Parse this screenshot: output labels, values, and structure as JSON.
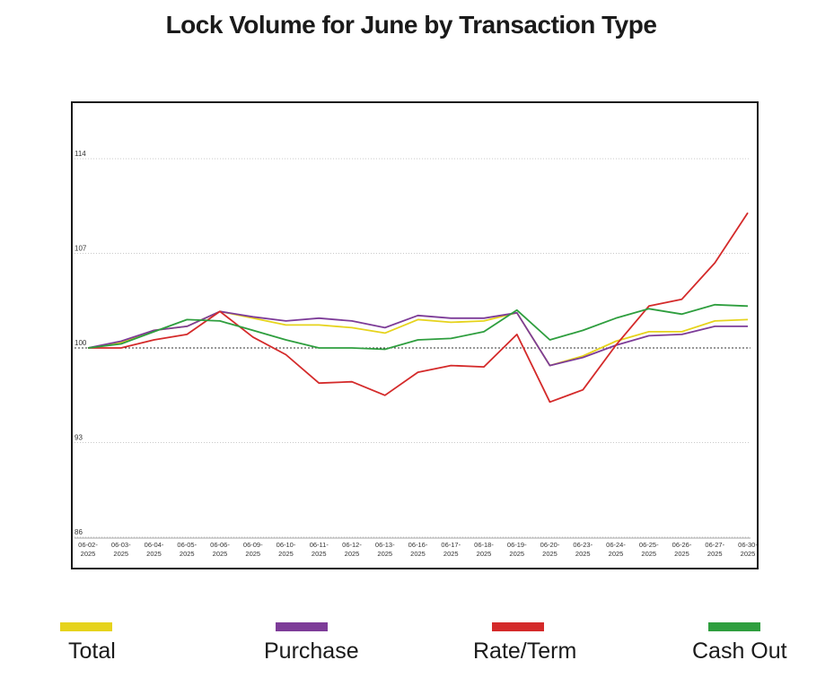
{
  "title": "Lock Volume for June by Transaction Type",
  "chart_data": {
    "type": "line",
    "title": "Lock Volume for June by Transaction Type",
    "xlabel": "",
    "ylabel": "",
    "categories": [
      "06-02-2025",
      "06-03-2025",
      "06-04-2025",
      "06-05-2025",
      "06-06-2025",
      "06-09-2025",
      "06-10-2025",
      "06-11-2025",
      "06-12-2025",
      "06-13-2025",
      "06-16-2025",
      "06-17-2025",
      "06-18-2025",
      "06-19-2025",
      "06-20-2025",
      "06-23-2025",
      "06-24-2025",
      "06-25-2025",
      "06-26-2025",
      "06-27-2025",
      "06-30-2025"
    ],
    "x_tick_labels": [
      [
        "06-02-",
        "2025"
      ],
      [
        "06-03-",
        "2025"
      ],
      [
        "06-04-",
        "2025"
      ],
      [
        "06-05-",
        "2025"
      ],
      [
        "06-06-",
        "2025"
      ],
      [
        "06-09-",
        "2025"
      ],
      [
        "06-10-",
        "2025"
      ],
      [
        "06-11-",
        "2025"
      ],
      [
        "06-12-",
        "2025"
      ],
      [
        "06-13-",
        "2025"
      ],
      [
        "06-16-",
        "2025"
      ],
      [
        "06-17-",
        "2025"
      ],
      [
        "06-18-",
        "2025"
      ],
      [
        "06-19-",
        "2025"
      ],
      [
        "06-20-",
        "2025"
      ],
      [
        "06-23-",
        "2025"
      ],
      [
        "06-24-",
        "2025"
      ],
      [
        "06-25-",
        "2025"
      ],
      [
        "06-26-",
        "2025"
      ],
      [
        "06-27-",
        "2025"
      ],
      [
        "06-30-",
        "2025"
      ]
    ],
    "ylim": [
      86,
      118
    ],
    "yticks": [
      86,
      93,
      100,
      107,
      114
    ],
    "ytick_labels": [
      "86",
      "93",
      "100",
      "107",
      "114"
    ],
    "grid": "horizontal dotted",
    "reference_line": 100,
    "legend_position": "bottom",
    "series": [
      {
        "name": "Total",
        "color": "#e6d31c",
        "values": [
          100,
          100.4,
          101.3,
          101.6,
          102.7,
          102.2,
          101.7,
          101.7,
          101.5,
          101.1,
          102.1,
          101.9,
          102.0,
          102.6,
          98.7,
          99.4,
          100.5,
          101.2,
          101.2,
          102.0,
          102.1
        ]
      },
      {
        "name": "Purchase",
        "color": "#7d3c98",
        "values": [
          100,
          100.5,
          101.3,
          101.6,
          102.7,
          102.3,
          102.0,
          102.2,
          102.0,
          101.5,
          102.4,
          102.2,
          102.2,
          102.6,
          98.7,
          99.3,
          100.2,
          100.9,
          101.0,
          101.6,
          101.6
        ]
      },
      {
        "name": "Rate/Term",
        "color": "#d42a2a",
        "values": [
          100,
          100.0,
          100.6,
          101.0,
          102.7,
          100.8,
          99.5,
          97.4,
          97.5,
          96.5,
          98.2,
          98.7,
          98.6,
          101.0,
          96.0,
          96.9,
          100.2,
          103.1,
          103.6,
          106.3,
          110.0
        ]
      },
      {
        "name": "Cash Out",
        "color": "#2e9e3e",
        "values": [
          100,
          100.3,
          101.2,
          102.1,
          102.0,
          101.3,
          100.6,
          100.0,
          100.0,
          99.9,
          100.6,
          100.7,
          101.2,
          102.8,
          100.6,
          101.3,
          102.2,
          102.9,
          102.5,
          103.2,
          103.1
        ]
      }
    ]
  }
}
